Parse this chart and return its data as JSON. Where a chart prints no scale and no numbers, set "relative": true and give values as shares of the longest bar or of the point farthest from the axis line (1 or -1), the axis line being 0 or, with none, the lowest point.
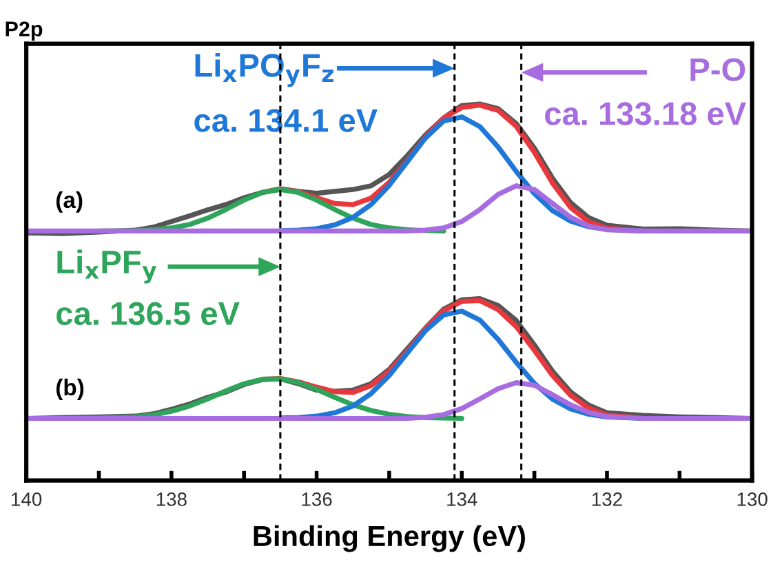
{
  "chart_data": {
    "type": "line",
    "title": "P2p",
    "xlabel": "Binding Energy (eV)",
    "relative": true,
    "xlim": [
      140,
      130
    ],
    "xticks": [
      140,
      {
        "value": 139,
        "label": null
      },
      138,
      {
        "value": 137,
        "label": null
      },
      136,
      {
        "value": 135,
        "label": null
      },
      134,
      {
        "value": 133,
        "label": null
      },
      132,
      {
        "value": 131,
        "label": null
      },
      130
    ],
    "x": [
      140,
      139.5,
      139,
      138.5,
      138.25,
      138,
      137.75,
      137.5,
      137.25,
      137,
      136.75,
      136.5,
      136.25,
      136,
      135.75,
      135.5,
      135.25,
      135,
      134.75,
      134.5,
      134.25,
      134,
      133.75,
      133.5,
      133.25,
      133,
      132.75,
      132.5,
      132.25,
      132,
      131.5,
      131,
      130.5,
      130
    ],
    "line_style": "solid",
    "marker": "none",
    "grid": false,
    "legend": false,
    "series": [
      {
        "color": "#555555",
        "values": [
          0.658,
          0.656,
          0.66,
          0.665,
          0.673,
          0.688,
          0.703,
          0.719,
          0.733,
          0.751,
          0.765,
          0.775,
          0.768,
          0.763,
          0.768,
          0.773,
          0.783,
          0.813,
          0.863,
          0.918,
          0.963,
          0.996,
          1.0,
          0.988,
          0.948,
          0.883,
          0.803,
          0.738,
          0.698,
          0.678,
          0.668,
          0.669,
          0.665,
          0.663
        ]
      },
      {
        "color": "#e8383d",
        "values": [
          null,
          null,
          null,
          null,
          null,
          null,
          null,
          null,
          null,
          null,
          0.765,
          0.774,
          0.767,
          0.751,
          0.736,
          0.733,
          0.75,
          0.792,
          0.85,
          0.913,
          0.963,
          0.991,
          0.997,
          0.983,
          0.941,
          0.872,
          0.79,
          0.725,
          0.687,
          0.67,
          0.663,
          null,
          null,
          null
        ]
      },
      {
        "color": "#2ea55a",
        "values": [
          null,
          null,
          0.663,
          0.664,
          0.666,
          0.671,
          0.68,
          0.697,
          0.72,
          0.745,
          0.765,
          0.773,
          0.765,
          0.745,
          0.72,
          0.697,
          0.68,
          0.671,
          0.666,
          0.664,
          0.663,
          null,
          null,
          null,
          null,
          null,
          null,
          null,
          null,
          null,
          null,
          null,
          null,
          null
        ]
      },
      {
        "color": "#1f78d8",
        "values": [
          null,
          null,
          null,
          null,
          null,
          null,
          null,
          null,
          null,
          null,
          null,
          0.664,
          0.665,
          0.669,
          0.679,
          0.699,
          0.733,
          0.784,
          0.847,
          0.91,
          0.955,
          0.966,
          0.94,
          0.886,
          0.821,
          0.762,
          0.717,
          0.689,
          0.674,
          0.667,
          0.663,
          null,
          null,
          null
        ]
      },
      {
        "color": "#a76de0",
        "values": [
          0.663,
          0.663,
          0.663,
          0.663,
          0.663,
          0.663,
          0.663,
          0.663,
          0.663,
          0.663,
          0.663,
          0.663,
          0.663,
          0.663,
          0.663,
          0.663,
          0.663,
          0.663,
          0.663,
          0.665,
          0.671,
          0.688,
          0.72,
          0.76,
          0.783,
          0.773,
          0.736,
          0.699,
          0.676,
          0.666,
          0.663,
          0.663,
          0.663,
          0.663
        ]
      },
      {
        "color": "#555555",
        "values": [
          0.165,
          0.167,
          0.169,
          0.171,
          0.177,
          0.189,
          0.203,
          0.221,
          0.235,
          0.255,
          0.268,
          0.27,
          0.257,
          0.24,
          0.237,
          0.24,
          0.257,
          0.295,
          0.35,
          0.405,
          0.455,
          0.48,
          0.483,
          0.465,
          0.425,
          0.36,
          0.29,
          0.235,
          0.2,
          0.18,
          0.173,
          0.169,
          0.167,
          0.165
        ]
      },
      {
        "color": "#e8383d",
        "values": [
          null,
          null,
          null,
          null,
          null,
          null,
          null,
          null,
          null,
          null,
          0.269,
          0.271,
          0.262,
          0.248,
          0.236,
          0.234,
          0.252,
          0.29,
          0.344,
          0.403,
          0.451,
          0.476,
          0.478,
          0.454,
          0.409,
          0.346,
          0.279,
          0.226,
          0.192,
          0.174,
          0.165,
          null,
          null,
          null
        ]
      },
      {
        "color": "#2ea55a",
        "values": [
          null,
          0.165,
          0.166,
          0.169,
          0.174,
          0.184,
          0.198,
          0.217,
          0.238,
          0.257,
          0.269,
          0.27,
          0.26,
          0.242,
          0.221,
          0.201,
          0.186,
          0.176,
          0.17,
          0.167,
          0.166,
          0.165,
          null,
          null,
          null,
          null,
          null,
          null,
          null,
          null,
          null,
          null,
          null,
          null
        ]
      },
      {
        "color": "#1f78d8",
        "values": [
          null,
          null,
          null,
          null,
          null,
          null,
          null,
          null,
          null,
          null,
          null,
          0.166,
          0.167,
          0.171,
          0.18,
          0.198,
          0.231,
          0.279,
          0.339,
          0.398,
          0.44,
          0.45,
          0.426,
          0.375,
          0.314,
          0.258,
          0.216,
          0.19,
          0.176,
          0.169,
          0.165,
          null,
          null,
          null
        ]
      },
      {
        "color": "#a76de0",
        "values": [
          0.165,
          0.165,
          0.165,
          0.165,
          0.165,
          0.165,
          0.165,
          0.165,
          0.165,
          0.165,
          0.165,
          0.165,
          0.165,
          0.165,
          0.165,
          0.165,
          0.165,
          0.165,
          0.165,
          0.168,
          0.175,
          0.191,
          0.217,
          0.244,
          0.26,
          0.253,
          0.228,
          0.201,
          0.181,
          0.17,
          0.165,
          0.165,
          0.165,
          0.165
        ]
      }
    ],
    "ref_lines": [
      {
        "axis": "x",
        "value": 136.5,
        "color": "#000000",
        "line_style": "dashed"
      },
      {
        "axis": "x",
        "value": 134.1,
        "color": "#000000",
        "line_style": "dashed"
      },
      {
        "axis": "x",
        "value": 133.18,
        "color": "#000000",
        "line_style": "dashed"
      }
    ],
    "annotations": [
      "Li$_{x}$PO$_{y}$F$_{z}$",
      "ca. 134.1 eV",
      "P-O",
      "ca. 133.18 eV",
      "Li$_{x}$PF$_{y}$",
      "ca. 136.5 eV",
      "(a)",
      "(b)"
    ]
  }
}
